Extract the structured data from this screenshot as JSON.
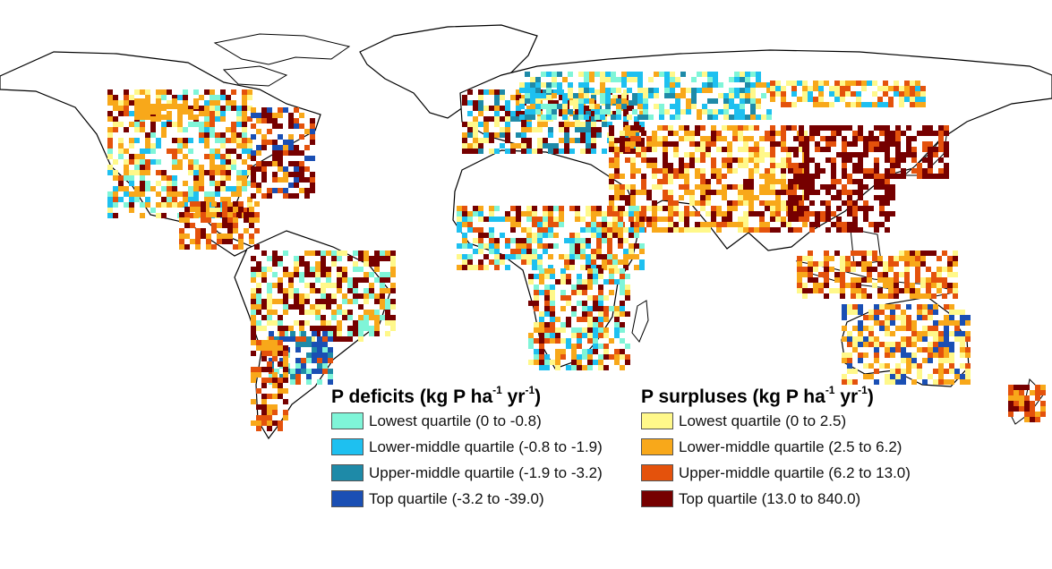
{
  "deficits": {
    "title_prefix": "P deficits (kg P ha",
    "title_sup1": "-1",
    "title_mid": " yr",
    "title_sup2": "-1",
    "title_suffix": ")",
    "items": [
      {
        "label": "Lowest quartile (0 to -0.8)",
        "color": "#7ff5d8"
      },
      {
        "label": "Lower-middle quartile (-0.8 to -1.9)",
        "color": "#1ec0f0"
      },
      {
        "label": "Upper-middle quartile (-1.9 to -3.2)",
        "color": "#1e8aa8"
      },
      {
        "label": "Top quartile (-3.2 to -39.0)",
        "color": "#1a4fb4"
      }
    ]
  },
  "surpluses": {
    "title_prefix": "P surpluses (kg P ha",
    "title_sup1": "-1",
    "title_mid": " yr",
    "title_sup2": "-1",
    "title_suffix": ")",
    "items": [
      {
        "label": "Lowest quartile (0 to 2.5)",
        "color": "#fff88a"
      },
      {
        "label": "Lower-middle quartile (2.5 to 6.2)",
        "color": "#f8a81a"
      },
      {
        "label": "Upper-middle quartile (6.2 to 13.0)",
        "color": "#e4520c"
      },
      {
        "label": "Top quartile (13.0 to 840.0)",
        "color": "#760000"
      }
    ]
  },
  "map": {
    "land_fill": "#ffffff",
    "border_color": "#000000"
  }
}
